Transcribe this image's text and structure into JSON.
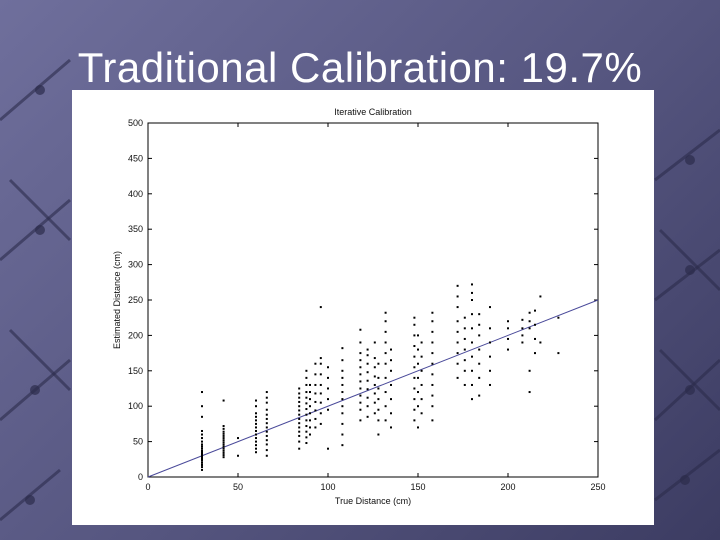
{
  "slide": {
    "title": "Traditional Calibration: 19.7%"
  },
  "chart_data": {
    "type": "scatter",
    "title": "Iterative Calibration",
    "xlabel": "True Distance (cm)",
    "ylabel": "Estimated Distance (cm)",
    "xlim": [
      0,
      250
    ],
    "ylim": [
      0,
      500
    ],
    "xticks": [
      0,
      50,
      100,
      150,
      200,
      250
    ],
    "yticks": [
      0,
      50,
      100,
      150,
      200,
      250,
      300,
      350,
      400,
      450,
      500
    ],
    "grid": false,
    "legend": "none",
    "point_color": "#000000",
    "fit_line": {
      "x": [
        0,
        250
      ],
      "y": [
        0,
        250
      ],
      "color": "#4a4a9a"
    },
    "groups": [
      {
        "x": 30,
        "y_values": [
          10,
          14,
          17,
          20,
          23,
          25,
          27,
          29,
          31,
          33,
          35,
          37,
          40,
          43,
          46,
          50,
          55,
          60,
          65,
          85,
          100,
          120
        ]
      },
      {
        "x": 42,
        "y_values": [
          28,
          31,
          34,
          37,
          40,
          43,
          46,
          49,
          52,
          55,
          58,
          61,
          64,
          68,
          72,
          108
        ]
      },
      {
        "x": 50,
        "y_values": [
          30,
          55
        ]
      },
      {
        "x": 60,
        "y_values": [
          35,
          40,
          45,
          50,
          55,
          60,
          65,
          70,
          75,
          80,
          85,
          90,
          100,
          108
        ]
      },
      {
        "x": 66,
        "y_values": [
          30,
          38,
          46,
          52,
          58,
          64,
          70,
          76,
          82,
          88,
          95,
          105,
          112,
          120
        ]
      },
      {
        "x": 84,
        "y_values": [
          40,
          50,
          58,
          64,
          70,
          76,
          82,
          88,
          94,
          100,
          106,
          112,
          118,
          125
        ]
      },
      {
        "x": 88,
        "y_values": [
          48,
          56,
          64,
          72,
          80,
          88,
          96,
          104,
          112,
          120,
          130,
          140,
          150
        ]
      },
      {
        "x": 90,
        "y_values": [
          60,
          70,
          80,
          90,
          100,
          110,
          120,
          130
        ]
      },
      {
        "x": 93,
        "y_values": [
          70,
          82,
          94,
          106,
          118,
          130,
          145,
          160
        ]
      },
      {
        "x": 96,
        "y_values": [
          75,
          90,
          105,
          118,
          130,
          145,
          160,
          168,
          240
        ]
      },
      {
        "x": 100,
        "y_values": [
          40,
          95,
          110,
          125,
          140,
          155
        ]
      },
      {
        "x": 108,
        "y_values": [
          45,
          60,
          75,
          90,
          100,
          110,
          120,
          130,
          140,
          150,
          165,
          182
        ]
      },
      {
        "x": 118,
        "y_values": [
          80,
          95,
          105,
          115,
          125,
          135,
          145,
          155,
          165,
          175,
          190,
          208
        ]
      },
      {
        "x": 122,
        "y_values": [
          85,
          100,
          112,
          124,
          136,
          148,
          160,
          172,
          180
        ]
      },
      {
        "x": 126,
        "y_values": [
          90,
          105,
          118,
          130,
          142,
          155,
          168,
          190
        ]
      },
      {
        "x": 128,
        "y_values": [
          60,
          80,
          95,
          110,
          125,
          140,
          160
        ]
      },
      {
        "x": 132,
        "y_values": [
          80,
          100,
          120,
          140,
          160,
          175,
          190,
          205,
          220,
          232
        ]
      },
      {
        "x": 135,
        "y_values": [
          70,
          90,
          110,
          130,
          150,
          165,
          180
        ]
      },
      {
        "x": 148,
        "y_values": [
          80,
          95,
          110,
          125,
          140,
          155,
          170,
          185,
          200,
          215,
          225
        ]
      },
      {
        "x": 150,
        "y_values": [
          70,
          100,
          120,
          140,
          160,
          180,
          200
        ]
      },
      {
        "x": 152,
        "y_values": [
          90,
          110,
          130,
          150,
          170,
          190
        ]
      },
      {
        "x": 158,
        "y_values": [
          80,
          100,
          115,
          130,
          145,
          160,
          175,
          190,
          205,
          220,
          232
        ]
      },
      {
        "x": 172,
        "y_values": [
          140,
          160,
          175,
          190,
          205,
          220,
          240,
          255,
          270
        ]
      },
      {
        "x": 176,
        "y_values": [
          130,
          150,
          165,
          180,
          195,
          210,
          225
        ]
      },
      {
        "x": 180,
        "y_values": [
          110,
          130,
          150,
          170,
          190,
          210,
          230,
          250,
          260,
          272
        ]
      },
      {
        "x": 184,
        "y_values": [
          115,
          140,
          160,
          180,
          200,
          215,
          230
        ]
      },
      {
        "x": 190,
        "y_values": [
          130,
          150,
          170,
          190,
          210,
          240
        ]
      },
      {
        "x": 200,
        "y_values": [
          180,
          195,
          210,
          220
        ]
      },
      {
        "x": 208,
        "y_values": [
          190,
          200,
          210,
          222
        ]
      },
      {
        "x": 212,
        "y_values": [
          120,
          150,
          210,
          220,
          232
        ]
      },
      {
        "x": 215,
        "y_values": [
          175,
          195,
          215,
          235
        ]
      },
      {
        "x": 218,
        "y_values": [
          190,
          255
        ]
      },
      {
        "x": 228,
        "y_values": [
          175,
          225
        ]
      }
    ]
  }
}
